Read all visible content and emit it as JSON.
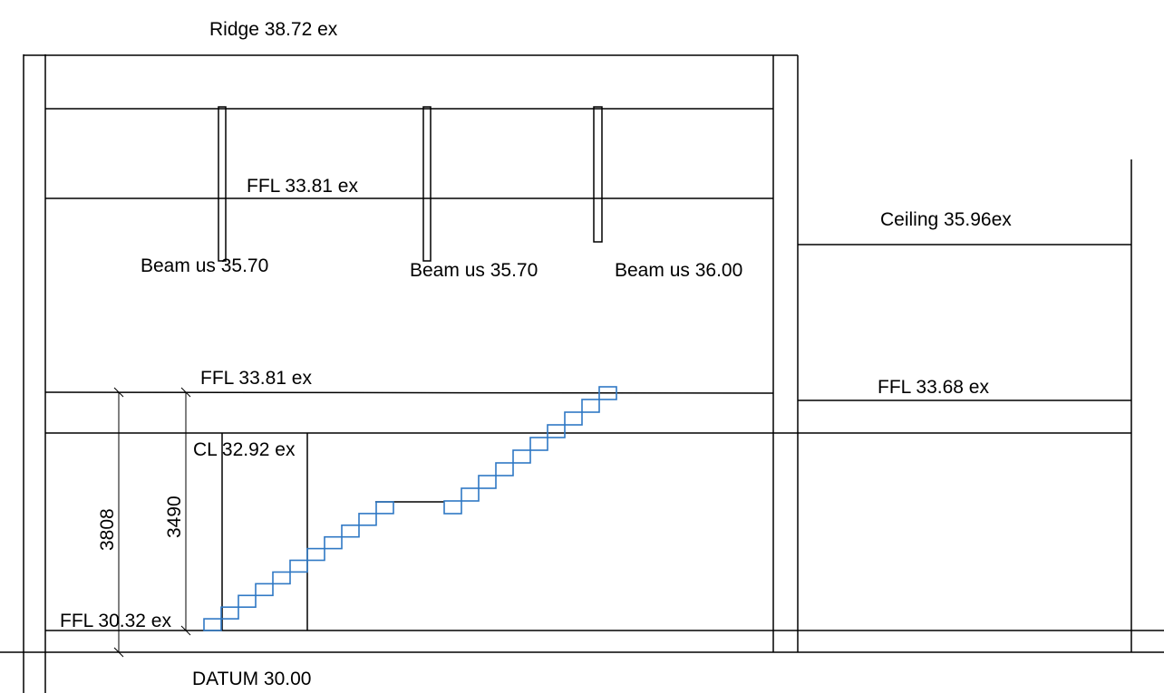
{
  "colors": {
    "lines": "#000000",
    "stair": "#2f78c4",
    "background": "#ffffff"
  },
  "labels": {
    "ridge": "Ridge 38.72 ex",
    "ffl_upper": "FFL 33.81 ex",
    "ffl_mid": "FFL 33.81 ex",
    "beam_1": "Beam us 35.70",
    "beam_2": "Beam us 35.70",
    "beam_3": "Beam us 36.00",
    "ceiling": "Ceiling 35.96ex",
    "ffl_right": "FFL 33.68 ex",
    "cl": "CL 32.92 ex",
    "ffl_lower": "FFL 30.32 ex",
    "datum": "DATUM 30.00"
  },
  "dimensions": {
    "outer": "3808",
    "inner": "3490"
  }
}
